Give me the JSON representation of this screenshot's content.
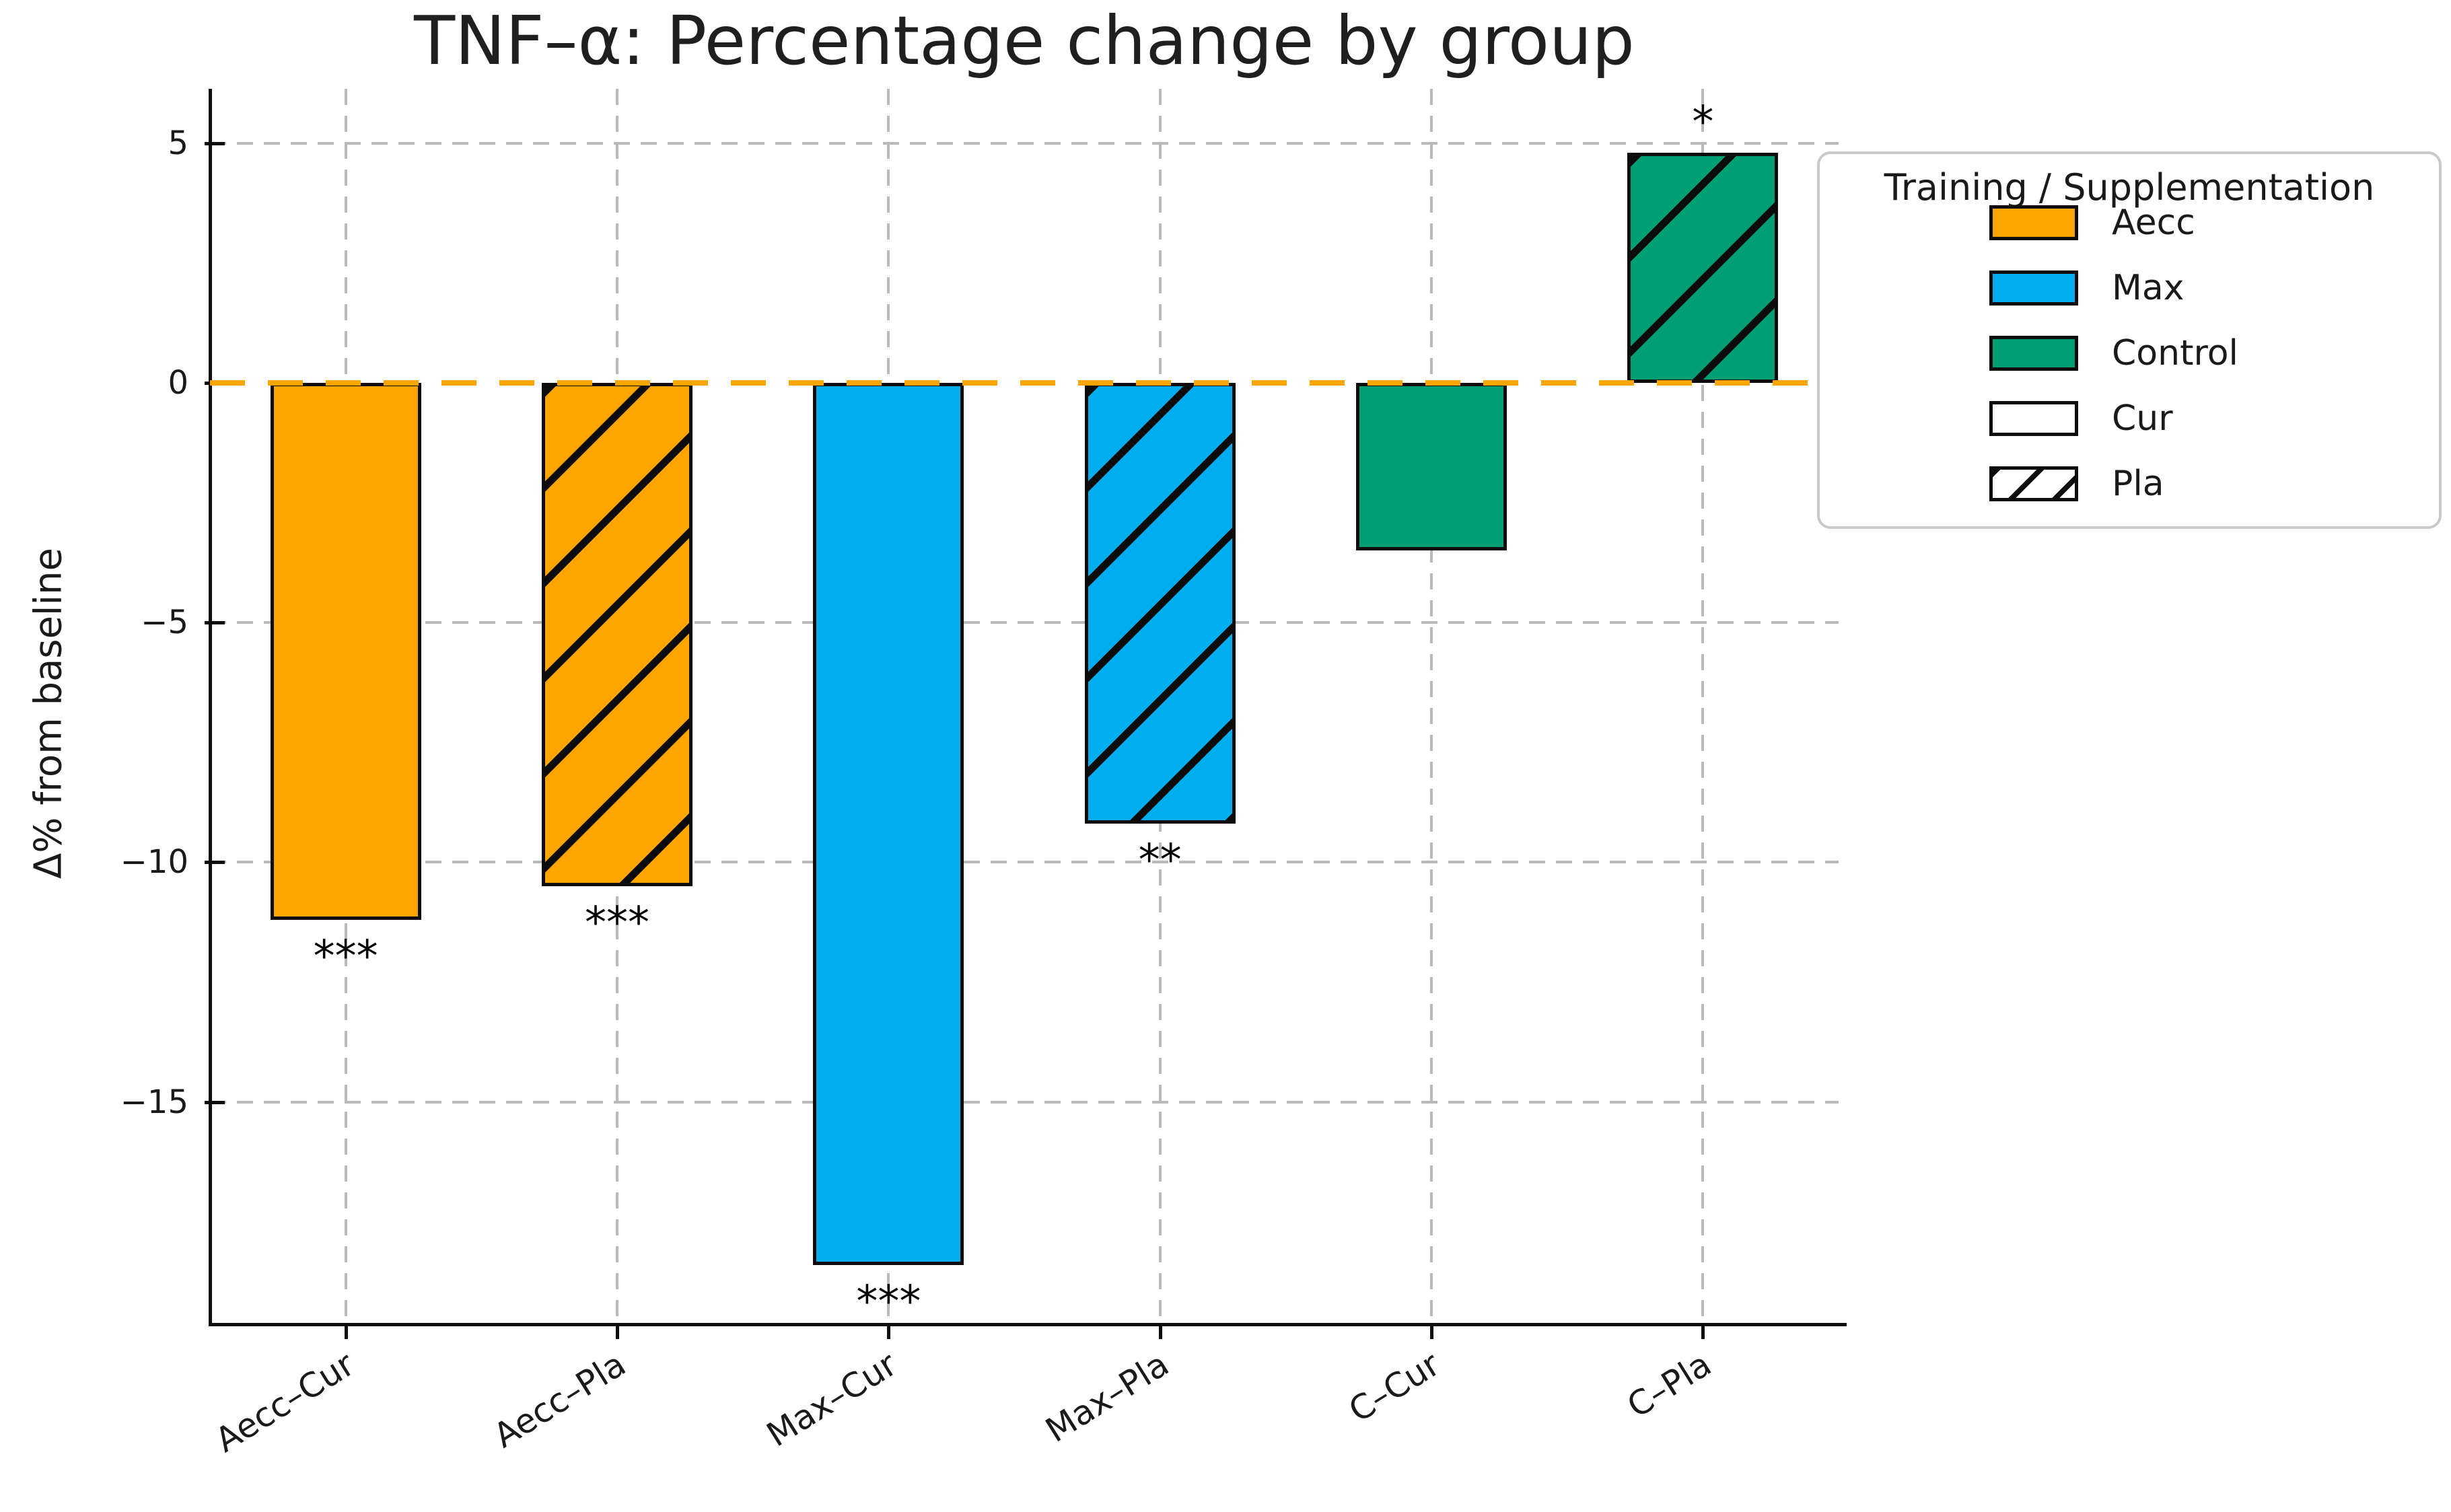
{
  "chart_data": {
    "type": "bar",
    "title": "TNF–α: Percentage change by group",
    "ylabel": "Δ% from baseline",
    "xlabel": "",
    "categories": [
      "Aecc–Cur",
      "Aecc–Pla",
      "Max–Cur",
      "Max–Pla",
      "C–Cur",
      "C–Pla"
    ],
    "values": [
      -11.2,
      -10.5,
      -18.4,
      -9.2,
      -3.5,
      4.8
    ],
    "bar_colors": [
      "#FFA500",
      "#FFA500",
      "#00AEEF",
      "#00AEEF",
      "#009E73",
      "#009E73"
    ],
    "bar_hatched": [
      false,
      true,
      false,
      true,
      false,
      true
    ],
    "significance": [
      "***",
      "***",
      "***",
      "**",
      "",
      "*"
    ],
    "yticks": [
      5,
      0,
      -5,
      -10,
      -15
    ],
    "ytick_labels": [
      "5",
      "0",
      "−5",
      "−10",
      "−15"
    ],
    "ylim": [
      -19.6,
      6.2
    ],
    "grid": true,
    "grid_style": "dashed",
    "zero_line": {
      "y": 0,
      "color": "#FFA500",
      "style": "dashed"
    },
    "legend": {
      "title": "Training / Supplementation",
      "entries": [
        {
          "label": "Aecc",
          "color": "#FFA500",
          "hatch": false
        },
        {
          "label": "Max",
          "color": "#00AEEF",
          "hatch": false
        },
        {
          "label": "Control",
          "color": "#009E73",
          "hatch": false
        },
        {
          "label": "Cur",
          "color": "#FFFFFF",
          "hatch": false
        },
        {
          "label": "Pla",
          "color": "#FFFFFF",
          "hatch": true
        }
      ]
    },
    "colors": {
      "grid": "#b9b9b9",
      "text": "#1a1a1a",
      "bar_edge": "#0c0c0c",
      "zero": "#FFA500"
    }
  }
}
